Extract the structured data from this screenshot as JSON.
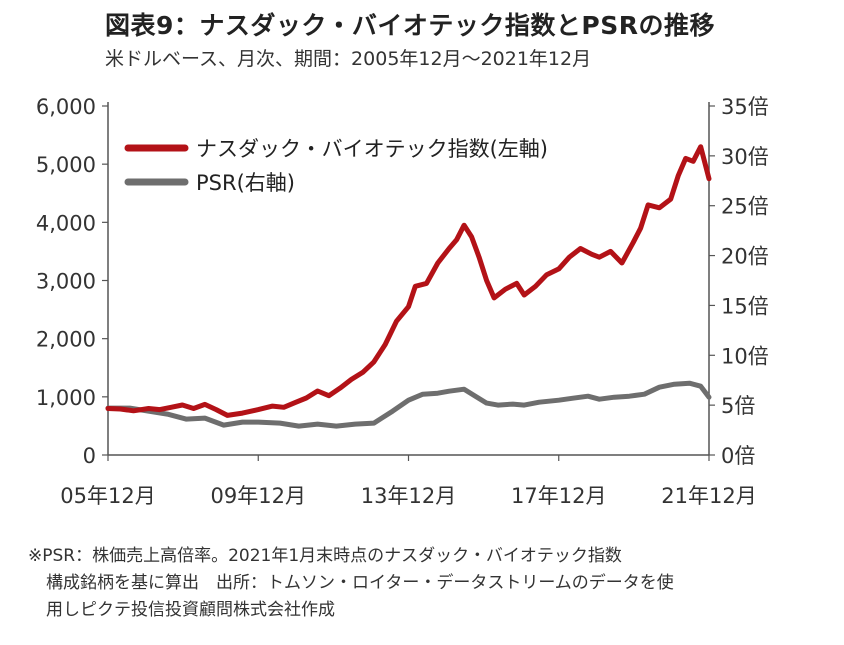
{
  "title": "図表9：ナスダック・バイオテック指数とPSRの推移",
  "subtitle": "米ドルベース、月次、期間：2005年12月～2021年12月",
  "notes": [
    "※PSR：株価売上高倍率。2021年1月末時点のナスダック・バイオテック指数",
    "構成銘柄を基に算出　出所：トムソン・ロイター・データストリームのデータを使",
    "用しピクテ投信投資顧問株式会社作成"
  ],
  "chart_data": {
    "type": "line",
    "x_tick_labels": [
      "05年12月",
      "09年12月",
      "13年12月",
      "17年12月",
      "21年12月"
    ],
    "x_tick_years": [
      2005.92,
      2009.92,
      2013.92,
      2017.92,
      2021.92
    ],
    "xlim": [
      2005.92,
      2021.92
    ],
    "left_axis": {
      "ylim": [
        0,
        6000
      ],
      "ticks": [
        0,
        1000,
        2000,
        3000,
        4000,
        5000,
        6000
      ],
      "tick_labels": [
        "0",
        "1,000",
        "2,000",
        "3,000",
        "4,000",
        "5,000",
        "6,000"
      ]
    },
    "right_axis": {
      "ylim": [
        0,
        35
      ],
      "ticks": [
        0,
        5,
        10,
        15,
        20,
        25,
        30,
        35
      ],
      "tick_labels": [
        "0倍",
        "5倍",
        "10倍",
        "15倍",
        "20倍",
        "25倍",
        "30倍",
        "35倍"
      ]
    },
    "series": [
      {
        "name": "ナスダック・バイオテック指数(左軸)",
        "axis": "left",
        "color": "#b31217",
        "points": [
          [
            2005.92,
            800
          ],
          [
            2006.25,
            790
          ],
          [
            2006.6,
            760
          ],
          [
            2007.0,
            800
          ],
          [
            2007.3,
            780
          ],
          [
            2007.6,
            820
          ],
          [
            2007.9,
            860
          ],
          [
            2008.2,
            800
          ],
          [
            2008.5,
            870
          ],
          [
            2008.8,
            780
          ],
          [
            2009.1,
            680
          ],
          [
            2009.5,
            720
          ],
          [
            2009.92,
            780
          ],
          [
            2010.3,
            840
          ],
          [
            2010.6,
            820
          ],
          [
            2010.9,
            900
          ],
          [
            2011.2,
            980
          ],
          [
            2011.5,
            1100
          ],
          [
            2011.8,
            1020
          ],
          [
            2012.1,
            1150
          ],
          [
            2012.4,
            1300
          ],
          [
            2012.7,
            1420
          ],
          [
            2013.0,
            1600
          ],
          [
            2013.3,
            1900
          ],
          [
            2013.6,
            2300
          ],
          [
            2013.92,
            2550
          ],
          [
            2014.1,
            2900
          ],
          [
            2014.4,
            2950
          ],
          [
            2014.7,
            3300
          ],
          [
            2015.0,
            3550
          ],
          [
            2015.2,
            3700
          ],
          [
            2015.4,
            3950
          ],
          [
            2015.6,
            3750
          ],
          [
            2015.8,
            3400
          ],
          [
            2016.0,
            3000
          ],
          [
            2016.2,
            2700
          ],
          [
            2016.5,
            2850
          ],
          [
            2016.8,
            2950
          ],
          [
            2017.0,
            2750
          ],
          [
            2017.3,
            2900
          ],
          [
            2017.6,
            3100
          ],
          [
            2017.92,
            3200
          ],
          [
            2018.2,
            3400
          ],
          [
            2018.5,
            3550
          ],
          [
            2018.8,
            3450
          ],
          [
            2019.0,
            3400
          ],
          [
            2019.3,
            3500
          ],
          [
            2019.6,
            3300
          ],
          [
            2019.9,
            3650
          ],
          [
            2020.1,
            3900
          ],
          [
            2020.3,
            4300
          ],
          [
            2020.6,
            4250
          ],
          [
            2020.9,
            4400
          ],
          [
            2021.1,
            4800
          ],
          [
            2021.3,
            5100
          ],
          [
            2021.5,
            5050
          ],
          [
            2021.7,
            5300
          ],
          [
            2021.92,
            4750
          ]
        ]
      },
      {
        "name": "PSR(右軸)",
        "axis": "right",
        "color": "#6e6e6e",
        "points": [
          [
            2005.92,
            4.7
          ],
          [
            2006.5,
            4.7
          ],
          [
            2007.0,
            4.4
          ],
          [
            2007.5,
            4.1
          ],
          [
            2008.0,
            3.6
          ],
          [
            2008.5,
            3.7
          ],
          [
            2009.0,
            3.0
          ],
          [
            2009.5,
            3.3
          ],
          [
            2009.92,
            3.3
          ],
          [
            2010.5,
            3.2
          ],
          [
            2011.0,
            2.9
          ],
          [
            2011.5,
            3.1
          ],
          [
            2012.0,
            2.9
          ],
          [
            2012.5,
            3.1
          ],
          [
            2013.0,
            3.2
          ],
          [
            2013.5,
            4.4
          ],
          [
            2013.92,
            5.5
          ],
          [
            2014.3,
            6.1
          ],
          [
            2014.7,
            6.2
          ],
          [
            2015.0,
            6.4
          ],
          [
            2015.4,
            6.6
          ],
          [
            2015.7,
            5.9
          ],
          [
            2016.0,
            5.2
          ],
          [
            2016.3,
            5.0
          ],
          [
            2016.7,
            5.1
          ],
          [
            2017.0,
            5.0
          ],
          [
            2017.4,
            5.3
          ],
          [
            2017.92,
            5.5
          ],
          [
            2018.3,
            5.7
          ],
          [
            2018.7,
            5.9
          ],
          [
            2019.0,
            5.6
          ],
          [
            2019.4,
            5.8
          ],
          [
            2019.8,
            5.9
          ],
          [
            2020.2,
            6.1
          ],
          [
            2020.6,
            6.8
          ],
          [
            2021.0,
            7.1
          ],
          [
            2021.4,
            7.2
          ],
          [
            2021.7,
            6.9
          ],
          [
            2021.92,
            5.8
          ]
        ]
      }
    ]
  }
}
